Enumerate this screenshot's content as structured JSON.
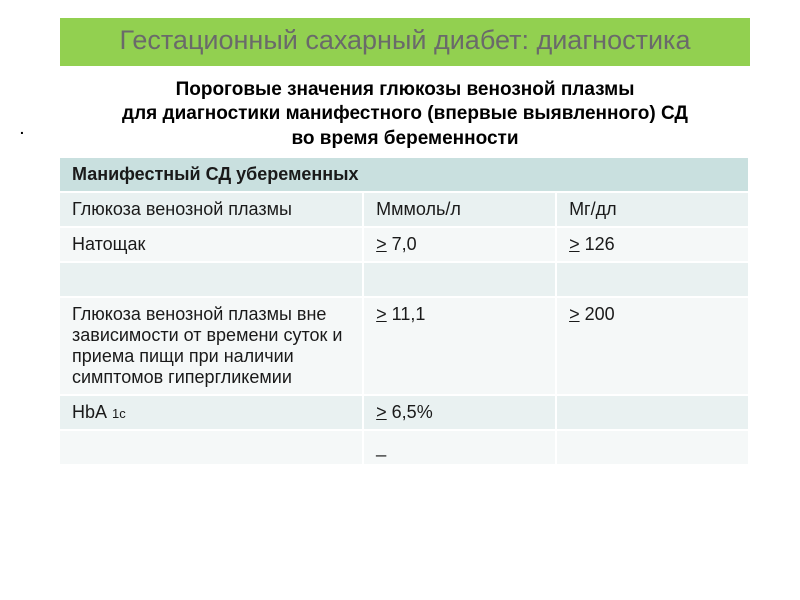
{
  "title": "Гестационный сахарный диабет: диагностика",
  "subtitle_l1": "Пороговые  значения глюкозы венозной плазмы",
  "subtitle_l2": "для диагностики манифестного (впервые выявленного) СД",
  "subtitle_l3": "во время беременности",
  "colors": {
    "banner_bg": "#92d050",
    "banner_text": "#6a6a6a",
    "header_row_bg": "#c9e0df",
    "row_a_bg": "#e9f1f1",
    "row_b_bg": "#f5f8f8",
    "cell_border": "#ffffff"
  },
  "table": {
    "header": "Манифестный СД убеременных",
    "rows": [
      {
        "c0": "Глюкоза венозной плазмы",
        "c1": "Мммоль/л",
        "c2": "Мг/дл"
      },
      {
        "c0": "Натощак",
        "c1_ge": ">",
        "c1_v": "  7,0",
        "c2_ge": ">",
        "c2_v": "   126"
      },
      {
        "c0": "",
        "c1": "",
        "c2": ""
      },
      {
        "c0": "Глюкоза венозной плазмы вне зависимости от времени суток и приема пищи при наличии симптомов гипергликемии",
        "c1_ge": ">",
        "c1_v": " 11,1",
        "c2_ge": ">",
        "c2_v": "  200"
      },
      {
        "c0_main": "НbА ",
        "c0_sub": "1с",
        "c1_ge": ">",
        "c1_v": " 6,5%",
        "c2": ""
      },
      {
        "c0": "",
        "c1_dash": "_",
        "c2": ""
      }
    ]
  }
}
